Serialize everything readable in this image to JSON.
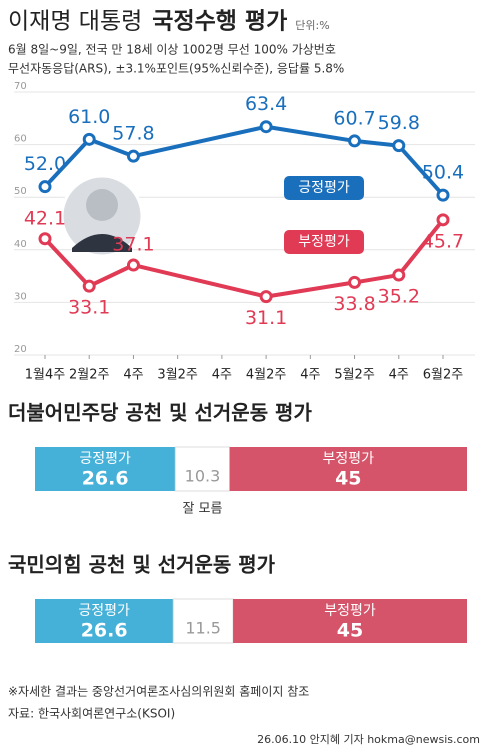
{
  "chart_data": [
    {
      "type": "line",
      "title_prefix": "이재명 대통령",
      "title": "국정수행 평가",
      "unit": "단위:%",
      "subtitle": [
        "6월 8일~9일, 전국 만 18세 이상 1002명 무선 100% 가상번호",
        "무선자동응답(ARS), ±3.1%포인트(95%신뢰수준), 응답률 5.8%"
      ],
      "categories": [
        "1월4주",
        "2월2주",
        "4주",
        "3월2주",
        "4주",
        "4월2주",
        "4주",
        "5월2주",
        "4주",
        "6월2주"
      ],
      "ylim": [
        20,
        70
      ],
      "yticks": [
        20,
        30,
        40,
        50,
        60,
        70
      ],
      "grid": true,
      "series": [
        {
          "name": "긍정평가",
          "color": "#1a6fbd",
          "values": [
            52.0,
            61.0,
            57.8,
            null,
            null,
            63.4,
            null,
            60.7,
            59.8,
            50.4
          ],
          "value_labels": [
            "52.0",
            "61.0",
            "57.8",
            null,
            null,
            "63.4",
            null,
            "60.7",
            "59.8",
            "50.4"
          ]
        },
        {
          "name": "부정평가",
          "color": "#e03a55",
          "values": [
            42.1,
            33.1,
            37.1,
            null,
            null,
            31.1,
            null,
            33.8,
            35.2,
            45.7
          ]
        }
      ]
    },
    {
      "type": "stacked_bar",
      "title": "더불어민주당 공천 및 선거운동 평가",
      "series": [
        {
          "name": "긍정평가",
          "color": "#45b0d8",
          "value": 26.6
        },
        {
          "name": "잘 모름",
          "color": "#ffffff",
          "value": 10.3
        },
        {
          "name": "부정평가",
          "color": "#d5546a",
          "value": 45
        }
      ]
    },
    {
      "type": "stacked_bar",
      "title": "국민의힘 공천 및 선거운동 평가",
      "series": [
        {
          "name": "긍정평가",
          "color": "#45b0d8",
          "value": 26.6
        },
        {
          "color": "#ffffff",
          "value": 11.5
        },
        {
          "name": "부정평가",
          "color": "#d5546a",
          "value": 45
        }
      ]
    }
  ],
  "footer": {
    "note": "※자세한 결과는 중앙선거여론조사심의위원회 홈페이지 참조",
    "source": "자료: 한국사회여론연구소(KSOI)",
    "credit": "26.06.10 안지혜 기자 hokma@newsis.com"
  }
}
